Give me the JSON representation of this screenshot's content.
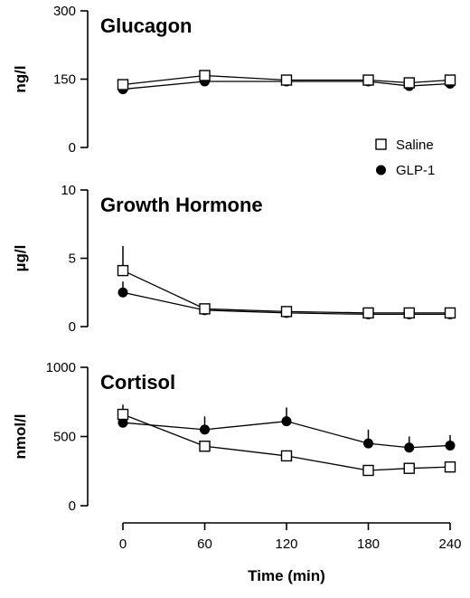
{
  "chart_data": [
    {
      "type": "line",
      "title": "Glucagon",
      "ylabel": "ng/l",
      "ylim": [
        0,
        300
      ],
      "yticks": [
        0,
        150,
        300
      ],
      "x": [
        0,
        60,
        120,
        180,
        210,
        240
      ],
      "series": [
        {
          "name": "Saline",
          "marker": "open-square",
          "values": [
            138,
            158,
            148,
            148,
            142,
            148
          ],
          "errors": [
            0,
            0,
            0,
            0,
            0,
            0
          ]
        },
        {
          "name": "GLP-1",
          "marker": "filled-circle",
          "values": [
            128,
            145,
            145,
            145,
            135,
            140
          ],
          "errors": [
            0,
            0,
            0,
            0,
            0,
            0
          ]
        }
      ]
    },
    {
      "type": "line",
      "title": "Growth Hormone",
      "ylabel": "µg/l",
      "ylim": [
        0,
        10
      ],
      "yticks": [
        0,
        5,
        10
      ],
      "x": [
        0,
        60,
        120,
        180,
        210,
        240
      ],
      "series": [
        {
          "name": "Saline",
          "marker": "open-square",
          "values": [
            4.1,
            1.3,
            1.1,
            1.0,
            1.0,
            1.0
          ],
          "errors": [
            1.8,
            0,
            0,
            0,
            0,
            0
          ]
        },
        {
          "name": "GLP-1",
          "marker": "filled-circle",
          "values": [
            2.5,
            1.2,
            1.0,
            0.9,
            0.9,
            0.9
          ],
          "errors": [
            0.8,
            0,
            0,
            0,
            0,
            0
          ]
        }
      ]
    },
    {
      "type": "line",
      "title": "Cortisol",
      "ylabel": "nmol/l",
      "ylim": [
        0,
        1000
      ],
      "yticks": [
        0,
        500,
        1000
      ],
      "x": [
        0,
        60,
        120,
        180,
        210,
        240
      ],
      "series": [
        {
          "name": "Saline",
          "marker": "open-square",
          "values": [
            660,
            430,
            360,
            255,
            270,
            280
          ],
          "errors": [
            70,
            40,
            0,
            0,
            25,
            35
          ]
        },
        {
          "name": "GLP-1",
          "marker": "filled-circle",
          "values": [
            600,
            550,
            610,
            450,
            420,
            435
          ],
          "errors": [
            0,
            95,
            100,
            100,
            80,
            75
          ]
        }
      ]
    }
  ],
  "x_axis": {
    "label": "Time (min)",
    "ticks": [
      0,
      60,
      120,
      180,
      240
    ],
    "lim": [
      0,
      240
    ]
  },
  "legend": {
    "placement": "right, below top panel",
    "entries": [
      {
        "label": "Saline",
        "marker": "open-square"
      },
      {
        "label": "GLP-1",
        "marker": "filled-circle"
      }
    ]
  }
}
